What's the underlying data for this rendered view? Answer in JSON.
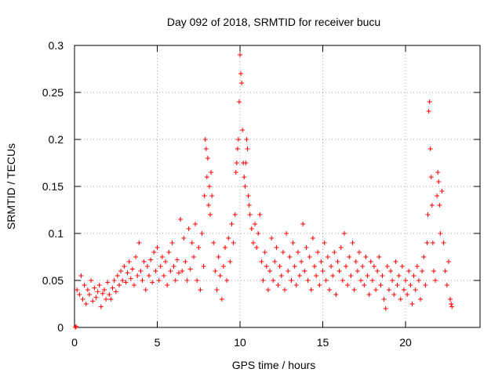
{
  "chart_data": {
    "type": "scatter",
    "title": "Day 092 of 2018, SRMTID for receiver bucu",
    "xlabel": "GPS time / hours",
    "ylabel": "SRMTID / TECUs",
    "xlim": [
      0,
      24.5
    ],
    "ylim": [
      0,
      0.3
    ],
    "x_ticks": [
      0,
      5,
      10,
      15,
      20
    ],
    "x_tick_labels": [
      "0",
      "5",
      "10",
      "15",
      "20"
    ],
    "y_ticks": [
      0,
      0.05,
      0.1,
      0.15,
      0.2,
      0.25,
      0.3
    ],
    "y_tick_labels": [
      "0",
      "0.05",
      "0.1",
      "0.15",
      "0.2",
      "0.25",
      "0.3"
    ],
    "grid": true,
    "marker": "plus",
    "series": [
      {
        "name": "SRMTID",
        "color": "#ff0000",
        "points": [
          [
            0.05,
            0.0
          ],
          [
            0.1,
            0.001
          ],
          [
            0.15,
            0.04
          ],
          [
            0.3,
            0.035
          ],
          [
            0.4,
            0.055
          ],
          [
            0.5,
            0.03
          ],
          [
            0.6,
            0.045
          ],
          [
            0.7,
            0.025
          ],
          [
            0.8,
            0.04
          ],
          [
            0.9,
            0.035
          ],
          [
            1.0,
            0.05
          ],
          [
            1.1,
            0.028
          ],
          [
            1.2,
            0.042
          ],
          [
            1.3,
            0.032
          ],
          [
            1.4,
            0.038
          ],
          [
            1.5,
            0.045
          ],
          [
            1.6,
            0.022
          ],
          [
            1.7,
            0.036
          ],
          [
            1.8,
            0.04
          ],
          [
            1.9,
            0.03
          ],
          [
            2.0,
            0.048
          ],
          [
            2.1,
            0.035
          ],
          [
            2.2,
            0.03
          ],
          [
            2.3,
            0.042
          ],
          [
            2.4,
            0.05
          ],
          [
            2.5,
            0.038
          ],
          [
            2.6,
            0.055
          ],
          [
            2.7,
            0.045
          ],
          [
            2.8,
            0.06
          ],
          [
            2.9,
            0.05
          ],
          [
            3.0,
            0.065
          ],
          [
            3.1,
            0.048
          ],
          [
            3.2,
            0.058
          ],
          [
            3.3,
            0.07
          ],
          [
            3.4,
            0.052
          ],
          [
            3.5,
            0.062
          ],
          [
            3.6,
            0.045
          ],
          [
            3.7,
            0.075
          ],
          [
            3.8,
            0.055
          ],
          [
            3.9,
            0.09
          ],
          [
            4.0,
            0.06
          ],
          [
            4.1,
            0.05
          ],
          [
            4.2,
            0.07
          ],
          [
            4.3,
            0.04
          ],
          [
            4.4,
            0.065
          ],
          [
            4.5,
            0.055
          ],
          [
            4.6,
            0.072
          ],
          [
            4.7,
            0.048
          ],
          [
            4.8,
            0.08
          ],
          [
            4.9,
            0.06
          ],
          [
            5.0,
            0.085
          ],
          [
            5.1,
            0.05
          ],
          [
            5.2,
            0.065
          ],
          [
            5.3,
            0.075
          ],
          [
            5.4,
            0.055
          ],
          [
            5.5,
            0.07
          ],
          [
            5.6,
            0.045
          ],
          [
            5.7,
            0.08
          ],
          [
            5.8,
            0.06
          ],
          [
            5.9,
            0.09
          ],
          [
            6.0,
            0.065
          ],
          [
            6.1,
            0.05
          ],
          [
            6.2,
            0.072
          ],
          [
            6.3,
            0.058
          ],
          [
            6.4,
            0.115
          ],
          [
            6.5,
            0.06
          ],
          [
            6.6,
            0.095
          ],
          [
            6.7,
            0.07
          ],
          [
            6.8,
            0.05
          ],
          [
            6.9,
            0.105
          ],
          [
            7.0,
            0.062
          ],
          [
            7.1,
            0.09
          ],
          [
            7.2,
            0.075
          ],
          [
            7.3,
            0.11
          ],
          [
            7.4,
            0.05
          ],
          [
            7.5,
            0.085
          ],
          [
            7.6,
            0.04
          ],
          [
            7.7,
            0.1
          ],
          [
            7.8,
            0.065
          ],
          [
            7.85,
            0.14
          ],
          [
            7.9,
            0.2
          ],
          [
            7.95,
            0.19
          ],
          [
            8.0,
            0.16
          ],
          [
            8.05,
            0.18
          ],
          [
            8.1,
            0.13
          ],
          [
            8.15,
            0.15
          ],
          [
            8.2,
            0.12
          ],
          [
            8.25,
            0.165
          ],
          [
            8.3,
            0.14
          ],
          [
            8.4,
            0.09
          ],
          [
            8.5,
            0.06
          ],
          [
            8.6,
            0.04
          ],
          [
            8.7,
            0.075
          ],
          [
            8.8,
            0.055
          ],
          [
            8.9,
            0.03
          ],
          [
            9.0,
            0.065
          ],
          [
            9.1,
            0.085
          ],
          [
            9.2,
            0.05
          ],
          [
            9.3,
            0.095
          ],
          [
            9.4,
            0.07
          ],
          [
            9.5,
            0.11
          ],
          [
            9.6,
            0.09
          ],
          [
            9.7,
            0.12
          ],
          [
            9.75,
            0.165
          ],
          [
            9.8,
            0.175
          ],
          [
            9.85,
            0.19
          ],
          [
            9.9,
            0.2
          ],
          [
            9.95,
            0.24
          ],
          [
            10.0,
            0.29
          ],
          [
            10.05,
            0.27
          ],
          [
            10.1,
            0.26
          ],
          [
            10.15,
            0.21
          ],
          [
            10.2,
            0.175
          ],
          [
            10.25,
            0.16
          ],
          [
            10.3,
            0.15
          ],
          [
            10.35,
            0.175
          ],
          [
            10.4,
            0.2
          ],
          [
            10.45,
            0.19
          ],
          [
            10.5,
            0.14
          ],
          [
            10.55,
            0.13
          ],
          [
            10.6,
            0.12
          ],
          [
            10.7,
            0.105
          ],
          [
            10.8,
            0.09
          ],
          [
            10.9,
            0.11
          ],
          [
            11.0,
            0.085
          ],
          [
            11.1,
            0.1
          ],
          [
            11.2,
            0.12
          ],
          [
            11.3,
            0.07
          ],
          [
            11.4,
            0.05
          ],
          [
            11.5,
            0.08
          ],
          [
            11.6,
            0.065
          ],
          [
            11.7,
            0.04
          ],
          [
            11.8,
            0.06
          ],
          [
            11.9,
            0.095
          ],
          [
            12.0,
            0.05
          ],
          [
            12.1,
            0.07
          ],
          [
            12.2,
            0.085
          ],
          [
            12.3,
            0.045
          ],
          [
            12.4,
            0.065
          ],
          [
            12.5,
            0.055
          ],
          [
            12.6,
            0.08
          ],
          [
            12.7,
            0.04
          ],
          [
            12.8,
            0.1
          ],
          [
            12.9,
            0.06
          ],
          [
            13.0,
            0.075
          ],
          [
            13.1,
            0.05
          ],
          [
            13.2,
            0.09
          ],
          [
            13.3,
            0.065
          ],
          [
            13.4,
            0.045
          ],
          [
            13.5,
            0.08
          ],
          [
            13.6,
            0.055
          ],
          [
            13.7,
            0.07
          ],
          [
            13.8,
            0.11
          ],
          [
            13.9,
            0.06
          ],
          [
            14.0,
            0.085
          ],
          [
            14.1,
            0.05
          ],
          [
            14.2,
            0.075
          ],
          [
            14.3,
            0.04
          ],
          [
            14.4,
            0.095
          ],
          [
            14.5,
            0.065
          ],
          [
            14.6,
            0.055
          ],
          [
            14.7,
            0.08
          ],
          [
            14.8,
            0.045
          ],
          [
            14.9,
            0.07
          ],
          [
            15.0,
            0.06
          ],
          [
            15.1,
            0.09
          ],
          [
            15.2,
            0.05
          ],
          [
            15.3,
            0.075
          ],
          [
            15.4,
            0.04
          ],
          [
            15.5,
            0.065
          ],
          [
            15.6,
            0.055
          ],
          [
            15.7,
            0.08
          ],
          [
            15.8,
            0.035
          ],
          [
            15.9,
            0.07
          ],
          [
            16.0,
            0.06
          ],
          [
            16.1,
            0.085
          ],
          [
            16.2,
            0.05
          ],
          [
            16.3,
            0.1
          ],
          [
            16.4,
            0.065
          ],
          [
            16.5,
            0.045
          ],
          [
            16.6,
            0.075
          ],
          [
            16.7,
            0.055
          ],
          [
            16.8,
            0.09
          ],
          [
            16.9,
            0.04
          ],
          [
            17.0,
            0.07
          ],
          [
            17.1,
            0.06
          ],
          [
            17.2,
            0.08
          ],
          [
            17.3,
            0.05
          ],
          [
            17.4,
            0.065
          ],
          [
            17.5,
            0.045
          ],
          [
            17.6,
            0.075
          ],
          [
            17.7,
            0.055
          ],
          [
            17.8,
            0.035
          ],
          [
            17.9,
            0.07
          ],
          [
            18.0,
            0.05
          ],
          [
            18.1,
            0.065
          ],
          [
            18.2,
            0.04
          ],
          [
            18.3,
            0.06
          ],
          [
            18.4,
            0.075
          ],
          [
            18.5,
            0.045
          ],
          [
            18.6,
            0.055
          ],
          [
            18.7,
            0.03
          ],
          [
            18.8,
            0.02
          ],
          [
            18.9,
            0.065
          ],
          [
            19.0,
            0.04
          ],
          [
            19.1,
            0.06
          ],
          [
            19.2,
            0.05
          ],
          [
            19.3,
            0.035
          ],
          [
            19.4,
            0.07
          ],
          [
            19.5,
            0.045
          ],
          [
            19.6,
            0.055
          ],
          [
            19.7,
            0.03
          ],
          [
            19.8,
            0.065
          ],
          [
            19.9,
            0.04
          ],
          [
            20.0,
            0.05
          ],
          [
            20.1,
            0.035
          ],
          [
            20.2,
            0.06
          ],
          [
            20.3,
            0.045
          ],
          [
            20.4,
            0.025
          ],
          [
            20.5,
            0.055
          ],
          [
            20.6,
            0.04
          ],
          [
            20.7,
            0.065
          ],
          [
            20.8,
            0.05
          ],
          [
            20.9,
            0.03
          ],
          [
            21.0,
            0.06
          ],
          [
            21.1,
            0.075
          ],
          [
            21.2,
            0.045
          ],
          [
            21.3,
            0.09
          ],
          [
            21.35,
            0.12
          ],
          [
            21.4,
            0.23
          ],
          [
            21.45,
            0.24
          ],
          [
            21.5,
            0.19
          ],
          [
            21.55,
            0.16
          ],
          [
            21.6,
            0.13
          ],
          [
            21.65,
            0.09
          ],
          [
            21.7,
            0.06
          ],
          [
            21.8,
            0.05
          ],
          [
            21.9,
            0.14
          ],
          [
            21.95,
            0.165
          ],
          [
            22.0,
            0.155
          ],
          [
            22.05,
            0.13
          ],
          [
            22.1,
            0.1
          ],
          [
            22.2,
            0.145
          ],
          [
            22.3,
            0.09
          ],
          [
            22.4,
            0.06
          ],
          [
            22.5,
            0.045
          ],
          [
            22.6,
            0.07
          ],
          [
            22.7,
            0.03
          ],
          [
            22.75,
            0.025
          ],
          [
            22.8,
            0.022
          ]
        ]
      }
    ]
  }
}
